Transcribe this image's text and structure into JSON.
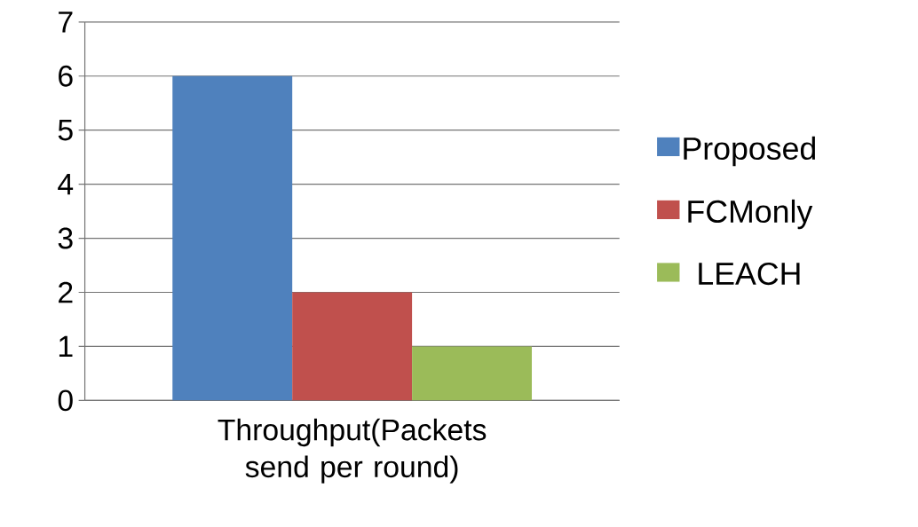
{
  "chart_data": {
    "type": "bar",
    "xlabel": "Throughput(Packets send per round)",
    "categories": [
      null,
      null,
      null
    ],
    "series": [
      {
        "name": "Proposed",
        "color": "#4f81bd",
        "values": [
          6,
          null,
          null
        ]
      },
      {
        "name": "FCMonly",
        "color": "#c0504d",
        "values": [
          null,
          2,
          null
        ]
      },
      {
        "name": "LEACH",
        "color": "#9bbb59",
        "values": [
          null,
          null,
          1
        ]
      }
    ],
    "ylim": [
      0,
      7
    ],
    "yticks": [
      0,
      1,
      2,
      3,
      4,
      5,
      6,
      7
    ],
    "grid": "y",
    "legend": "right"
  }
}
